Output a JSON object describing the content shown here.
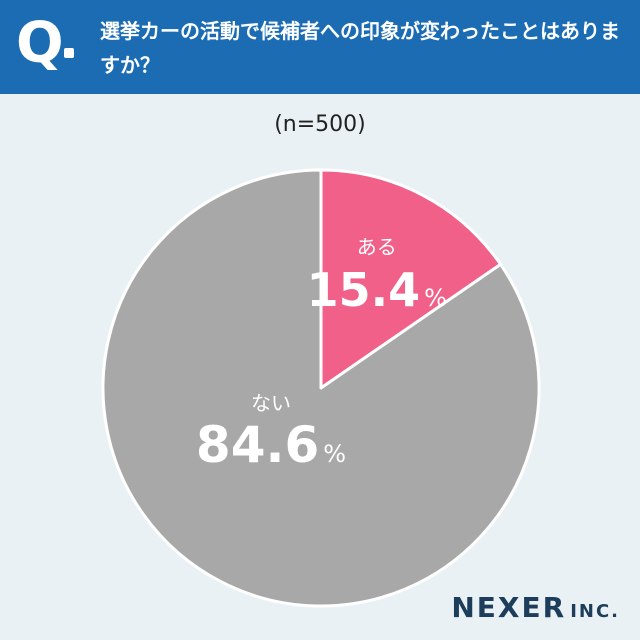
{
  "header": {
    "q_mark": "Q",
    "question": "選挙カーの活動で候補者への印象が変わったことはありますか？"
  },
  "sample_label": "(n=500)",
  "chart_data": {
    "type": "pie",
    "title": "",
    "labels": [
      "ある",
      "ない"
    ],
    "values": [
      15.4,
      84.6
    ],
    "colors": [
      "#f06088",
      "#a8a8a8"
    ],
    "value_display": [
      "15.4",
      "84.6"
    ],
    "unit": "%",
    "start": "12 o'clock, clockwise"
  },
  "logo": {
    "name": "NEXER",
    "suffix": "INC."
  }
}
